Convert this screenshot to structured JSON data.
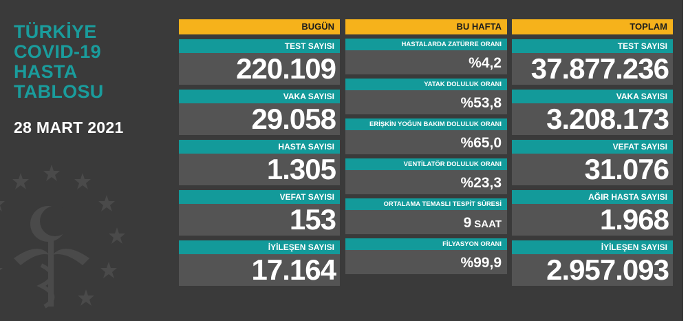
{
  "title_lines": [
    "TÜRKİYE",
    "COVID-19",
    "HASTA",
    "TABLOSU"
  ],
  "date": "28 MART 2021",
  "colors": {
    "teal": "#139a9a",
    "yellow": "#f6b21b",
    "panel": "#545454",
    "background": "#3a3a3a"
  },
  "watermark": {
    "icon": "ministry-emblem-icon"
  },
  "bugun": {
    "header": "BUGÜN",
    "cards": [
      {
        "label": "TEST SAYISI",
        "value": "220.109"
      },
      {
        "label": "VAKA SAYISI",
        "value": "29.058"
      },
      {
        "label": "HASTA SAYISI",
        "value": "1.305"
      },
      {
        "label": "VEFAT SAYISI",
        "value": "153"
      },
      {
        "label": "İYİLEŞEN SAYISI",
        "value": "17.164"
      }
    ]
  },
  "bu_hafta": {
    "header": "BU HAFTA",
    "cards": [
      {
        "label": "HASTALARDA ZATÜRRE ORANI",
        "value": "%4,2",
        "unit": ""
      },
      {
        "label": "YATAK DOLULUK ORANI",
        "value": "%53,8",
        "unit": ""
      },
      {
        "label": "ERİŞKİN YOĞUN BAKIM DOLULUK ORANI",
        "value": "%65,0",
        "unit": ""
      },
      {
        "label": "VENTİLATÖR DOLULUK ORANI",
        "value": "%23,3",
        "unit": ""
      },
      {
        "label": "ORTALAMA TEMASLI TESPİT SÜRESİ",
        "value": "9",
        "unit": "SAAT"
      },
      {
        "label": "FİLYASYON ORANI",
        "value": "%99,9",
        "unit": ""
      }
    ]
  },
  "toplam": {
    "header": "TOPLAM",
    "cards": [
      {
        "label": "TEST SAYISI",
        "value": "37.877.236"
      },
      {
        "label": "VAKA SAYISI",
        "value": "3.208.173"
      },
      {
        "label": "VEFAT SAYISI",
        "value": "31.076"
      },
      {
        "label": "AĞIR HASTA SAYISI",
        "value": "1.968"
      },
      {
        "label": "İYİLEŞEN SAYISI",
        "value": "2.957.093"
      }
    ]
  }
}
